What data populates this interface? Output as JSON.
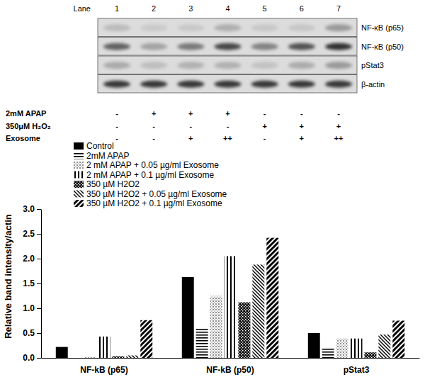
{
  "chart_data": {
    "type": "bar",
    "y_label": "Relative band intensity/actin",
    "categories": [
      "NF-kB (p65)",
      "NF-kB (p50)",
      "pStat3"
    ],
    "series": [
      {
        "name": "Control",
        "color": "#000000",
        "values": [
          0.22,
          1.63,
          0.5
        ]
      },
      {
        "name": "2mM APAP",
        "color": "#000000",
        "values": [
          0.0,
          0.6,
          0.19
        ]
      },
      {
        "name": "2 mM APAP + 0.05 µg/ml Exosome",
        "color": "#000000",
        "values": [
          0.02,
          1.25,
          0.39
        ]
      },
      {
        "name": "2 mM APAP + 0.1 µg/ml Exosome",
        "color": "#000000",
        "values": [
          0.43,
          2.05,
          0.39
        ]
      },
      {
        "name": "350 µM H2O2",
        "color": "#000000",
        "values": [
          0.03,
          1.12,
          0.11
        ]
      },
      {
        "name": "350 µM H2O2 + 0.05 µg/ml Exosome",
        "color": "#000000",
        "values": [
          0.05,
          1.88,
          0.47
        ]
      },
      {
        "name": "350 µM H2O2 + 0.1 µg/ml Exosome",
        "color": "#000000",
        "values": [
          0.76,
          2.42,
          0.75
        ]
      }
    ],
    "ylim": [
      0,
      3
    ],
    "yticks": [
      {
        "value": 0,
        "label": "0.0"
      },
      0.5,
      {
        "value": 1,
        "label": "1.0"
      },
      1.5,
      {
        "value": 2,
        "label": "2.0"
      },
      2.5,
      {
        "value": 3,
        "label": "3.0"
      }
    ],
    "legend": "top-left",
    "grid": false
  },
  "blot": {
    "lane_label": "Lane",
    "lanes": [
      1,
      2,
      3,
      4,
      5,
      6,
      7
    ],
    "rows": [
      "NF-κB (p65)",
      "NF-κB (p50)",
      "pStat3",
      "β-actin"
    ],
    "treatments": [
      {
        "label": "2mM APAP",
        "marks": [
          "-",
          "+",
          "+",
          "+",
          "-",
          "-",
          "-"
        ]
      },
      {
        "label": "350μM H₂O₂",
        "marks": [
          "-",
          "-",
          "-",
          "-",
          "+",
          "+",
          "+"
        ]
      },
      {
        "label": "Exosome",
        "marks": [
          "-",
          "-",
          "+",
          "++",
          "-",
          "+",
          "++"
        ]
      }
    ]
  }
}
